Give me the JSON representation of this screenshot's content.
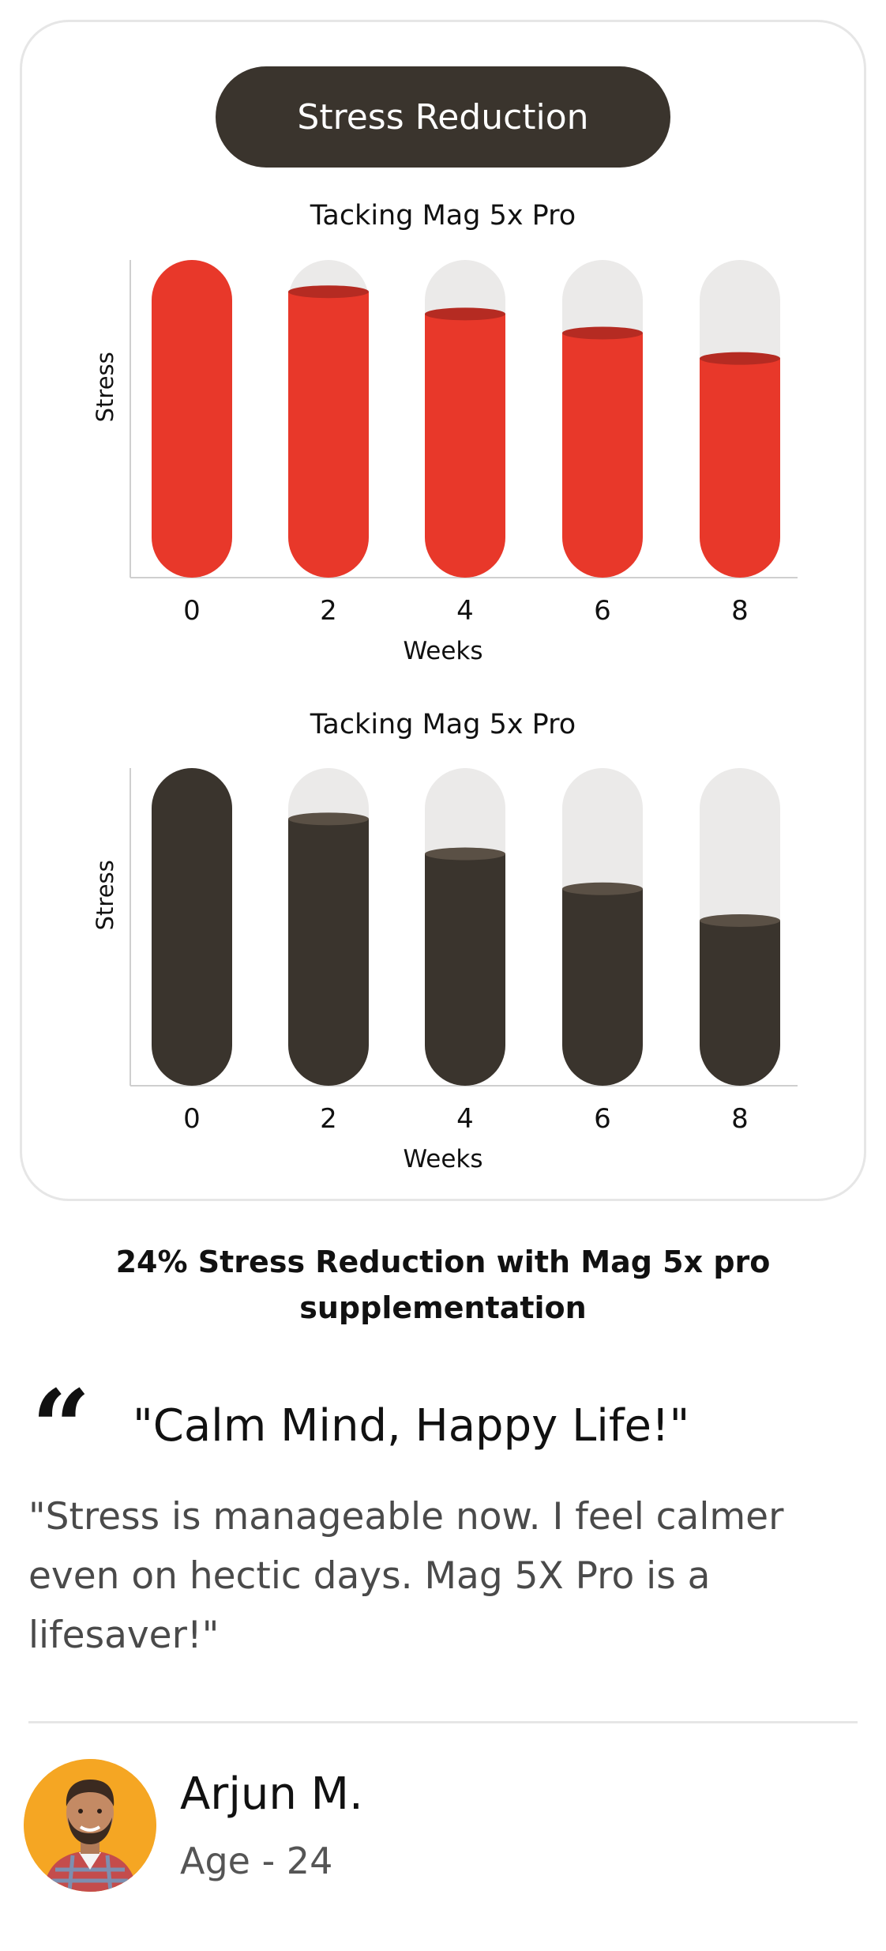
{
  "header": {
    "title": "Stress Reduction"
  },
  "chart_data": [
    {
      "type": "bar",
      "title": "Tacking Mag 5x Pro",
      "xlabel": "Weeks",
      "ylabel": "Stress",
      "categories": [
        "0",
        "2",
        "4",
        "6",
        "8"
      ],
      "values": [
        100,
        90,
        83,
        77,
        69
      ],
      "ylim": [
        0,
        100
      ],
      "grid": false,
      "colors": {
        "fill": "#e8382a",
        "top": "#b52b22",
        "track": "#ebeae9"
      }
    },
    {
      "type": "bar",
      "title": "Tacking Mag 5x Pro",
      "xlabel": "Weeks",
      "ylabel": "Stress",
      "categories": [
        "0",
        "2",
        "4",
        "6",
        "8"
      ],
      "values": [
        100,
        84,
        73,
        62,
        52
      ],
      "ylim": [
        0,
        100
      ],
      "grid": false,
      "colors": {
        "fill": "#3a342d",
        "top": "#5a5045",
        "track": "#ebeae9"
      }
    }
  ],
  "summary": {
    "headline": "24% Stress Reduction with Mag 5x pro supplementation"
  },
  "testimonial": {
    "quote_icon": "quote-icon",
    "title": "\"Calm Mind, Happy Life!\"",
    "body": "\"Stress is manageable now. I feel calmer even on hectic days. Mag 5X Pro is a lifesaver!\"",
    "author": {
      "name": "Arjun M.",
      "age": "Age - 24"
    }
  }
}
